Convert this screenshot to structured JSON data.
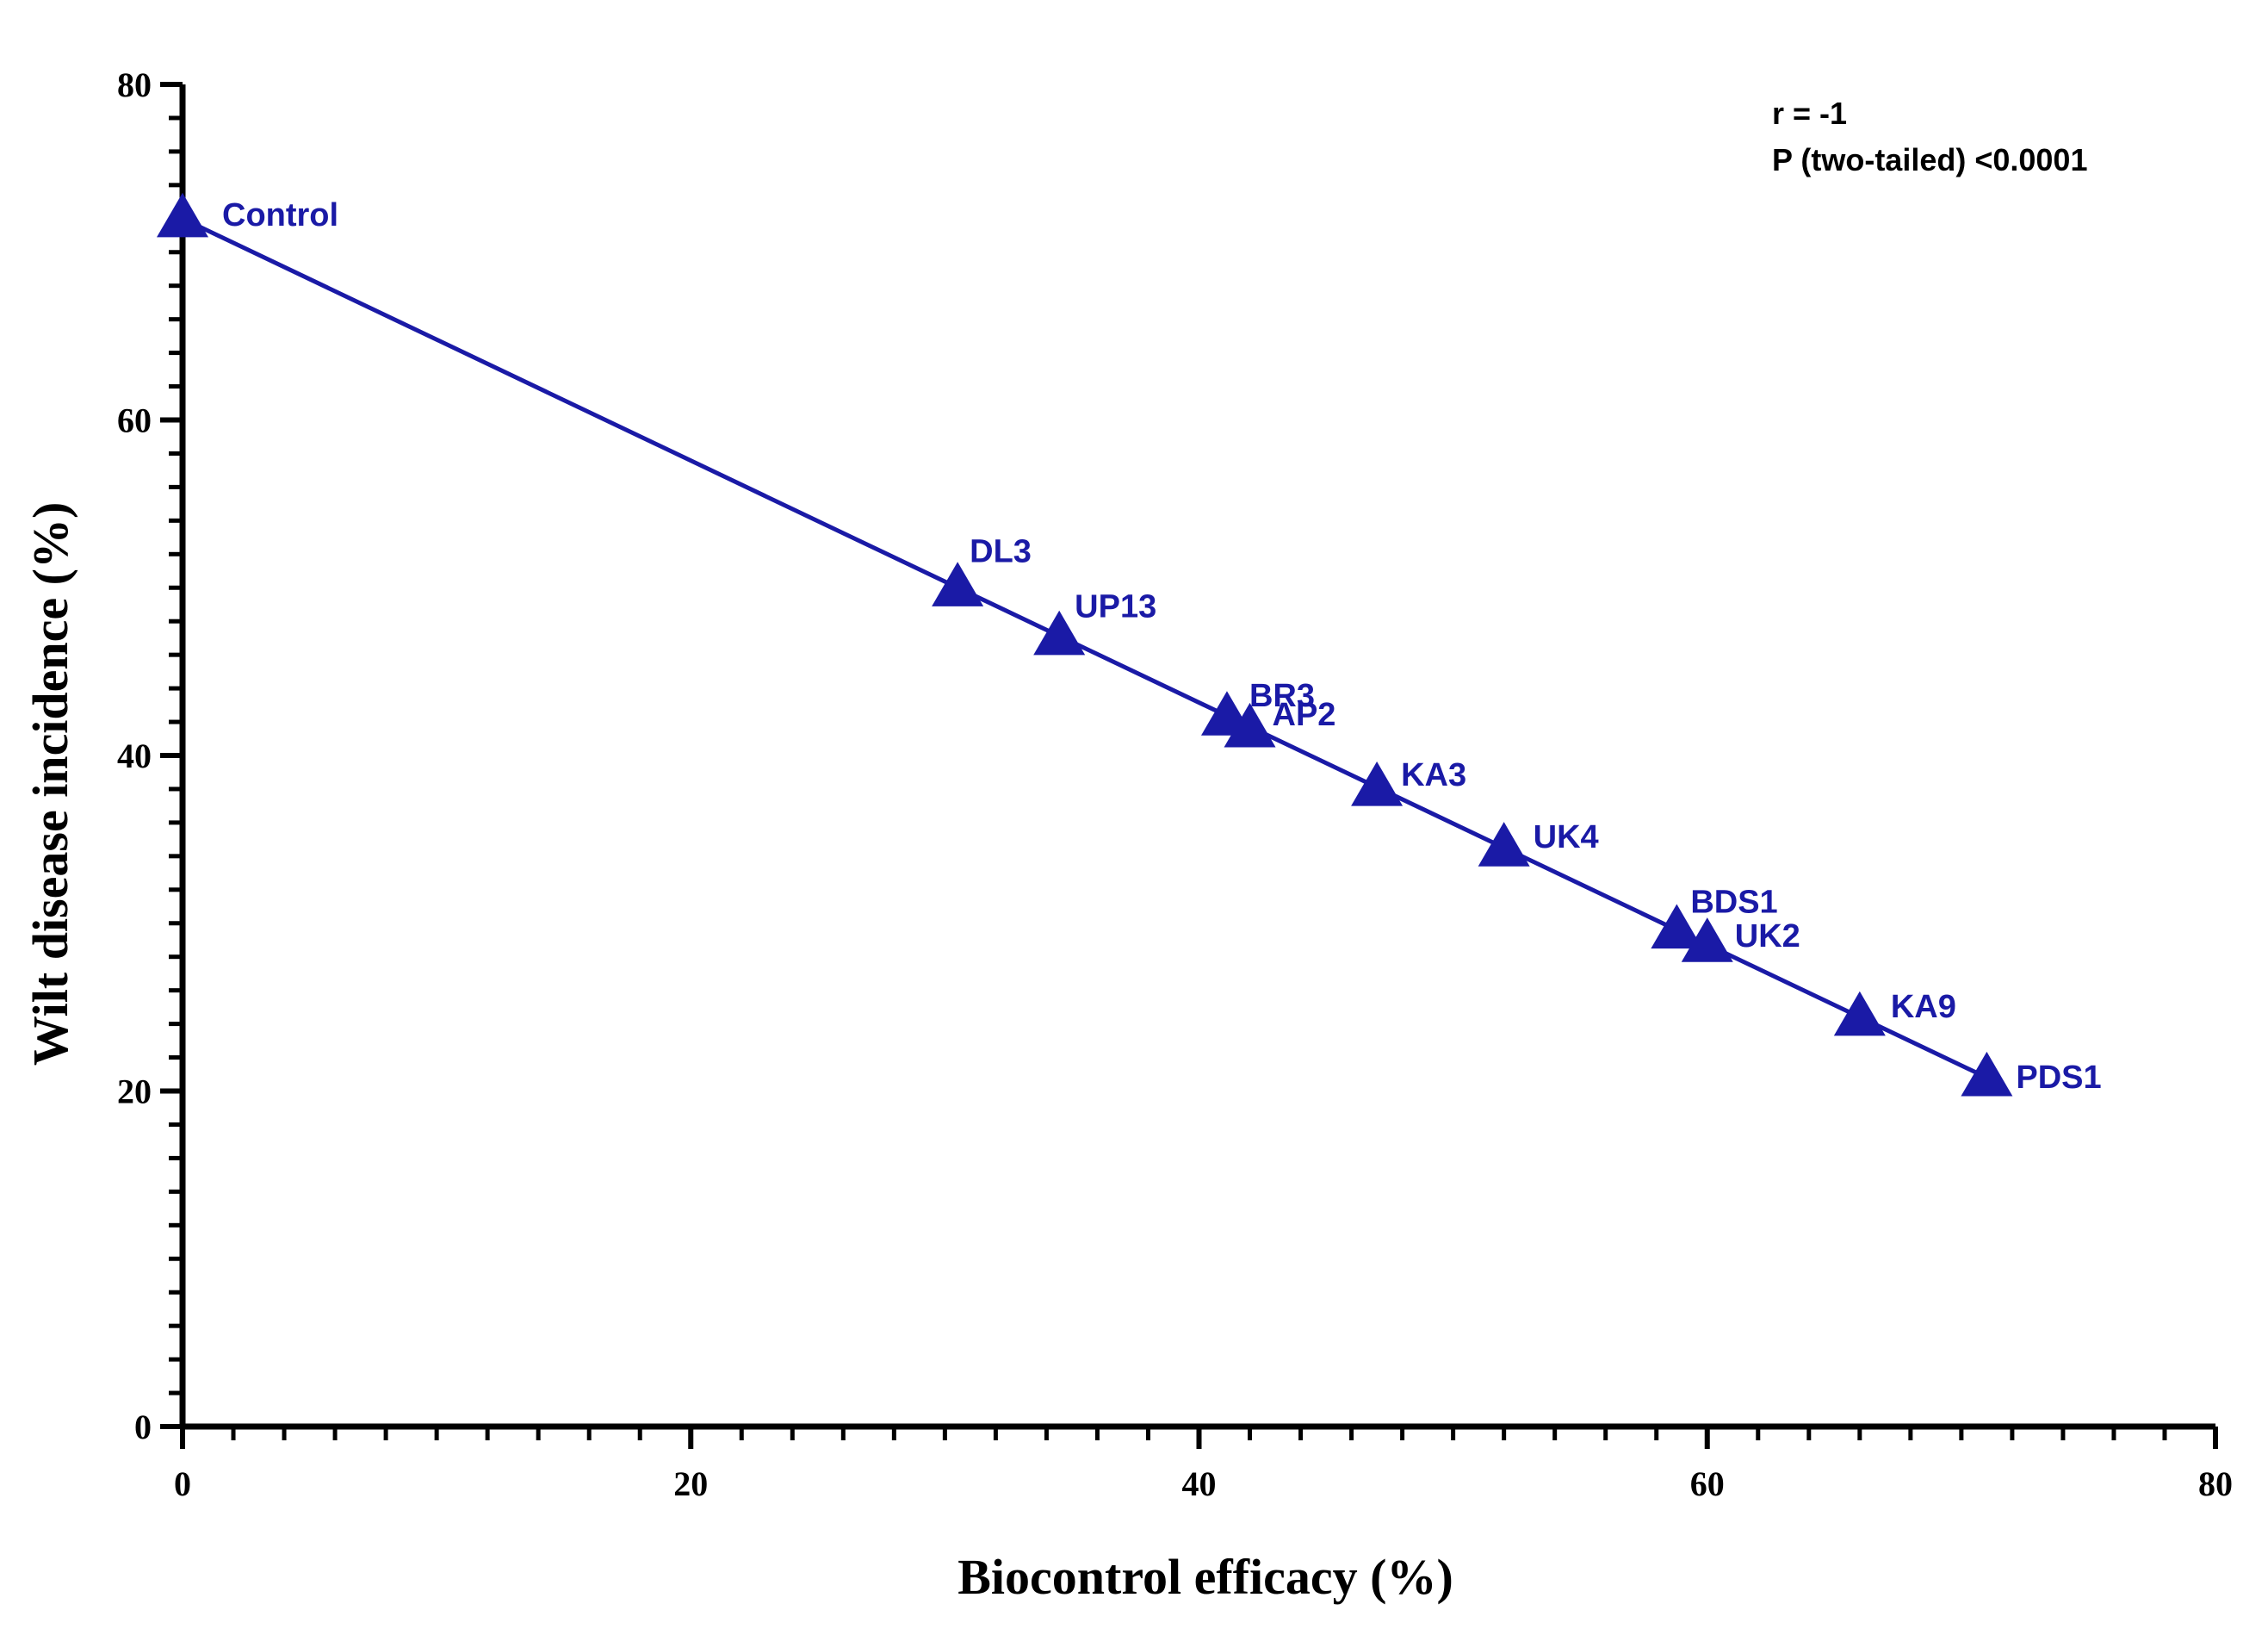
{
  "chart_data": {
    "type": "scatter",
    "title": "",
    "xlabel": "Biocontrol efficacy (%)",
    "ylabel": "Wilt disease incidence (%)",
    "xlim": [
      0,
      80
    ],
    "ylim": [
      0,
      80
    ],
    "xticks": [
      0,
      20,
      40,
      60,
      80
    ],
    "yticks": [
      0,
      20,
      40,
      60,
      80
    ],
    "grid": false,
    "marker": "triangle",
    "color": "#1a1aa6",
    "fit_line": true,
    "points": [
      {
        "label": "Control",
        "x": 0,
        "y": 72
      },
      {
        "label": "DL3",
        "x": 30.5,
        "y": 50
      },
      {
        "label": "UP13",
        "x": 34.5,
        "y": 47.1
      },
      {
        "label": "BR3",
        "x": 41.1,
        "y": 42.3
      },
      {
        "label": "AP2",
        "x": 42.0,
        "y": 41.6
      },
      {
        "label": "KA3",
        "x": 47.0,
        "y": 38.1
      },
      {
        "label": "UK4",
        "x": 52.0,
        "y": 34.5
      },
      {
        "label": "BDS1",
        "x": 58.8,
        "y": 29.6
      },
      {
        "label": "UK2",
        "x": 60.0,
        "y": 28.8
      },
      {
        "label": "KA9",
        "x": 66.0,
        "y": 24.4
      },
      {
        "label": "PDS1",
        "x": 71.0,
        "y": 20.8
      }
    ],
    "annotations": [
      "r = -1",
      "P (two-tailed) <0.0001"
    ]
  }
}
